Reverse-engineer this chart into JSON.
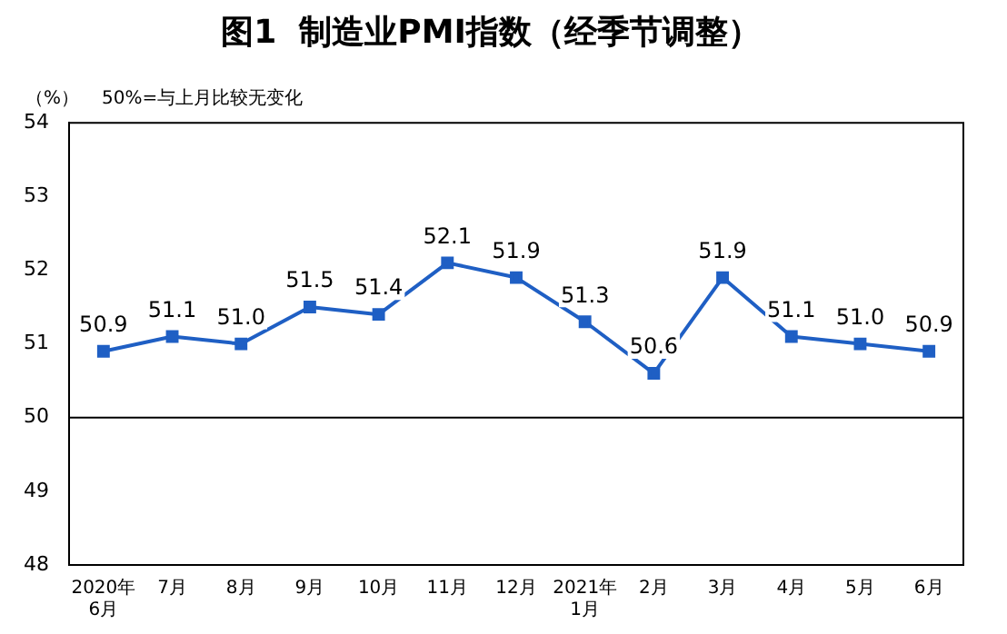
{
  "chart_data": {
    "type": "line",
    "title": "图1  制造业PMI指数（经季节调整）",
    "annotations": [
      "（%）",
      "50%=与上月比较无变化"
    ],
    "categories": [
      "2020年\n6月",
      "7月",
      "8月",
      "9月",
      "10月",
      "11月",
      "12月",
      "2021年\n1月",
      "2月",
      "3月",
      "4月",
      "5月",
      "6月"
    ],
    "series": [
      {
        "color": "#1f5fc4",
        "values": [
          50.9,
          51.1,
          51.0,
          51.5,
          51.4,
          52.1,
          51.9,
          51.3,
          50.6,
          51.9,
          51.1,
          51.0,
          50.9
        ],
        "value_labels": [
          "50.9",
          "51.1",
          "51.0",
          "51.5",
          "51.4",
          "52.1",
          "51.9",
          "51.3",
          "50.6",
          "51.9",
          "51.1",
          "51.0",
          "50.9"
        ]
      }
    ],
    "ylim": [
      48,
      54
    ],
    "yticks": [
      48,
      49,
      50,
      51,
      52,
      53,
      54
    ],
    "ref_lines": [
      {
        "axis": "y",
        "value": 50,
        "color": "#000000"
      }
    ],
    "marker": "square",
    "line_style": "solid",
    "grid": false,
    "legend": false
  }
}
